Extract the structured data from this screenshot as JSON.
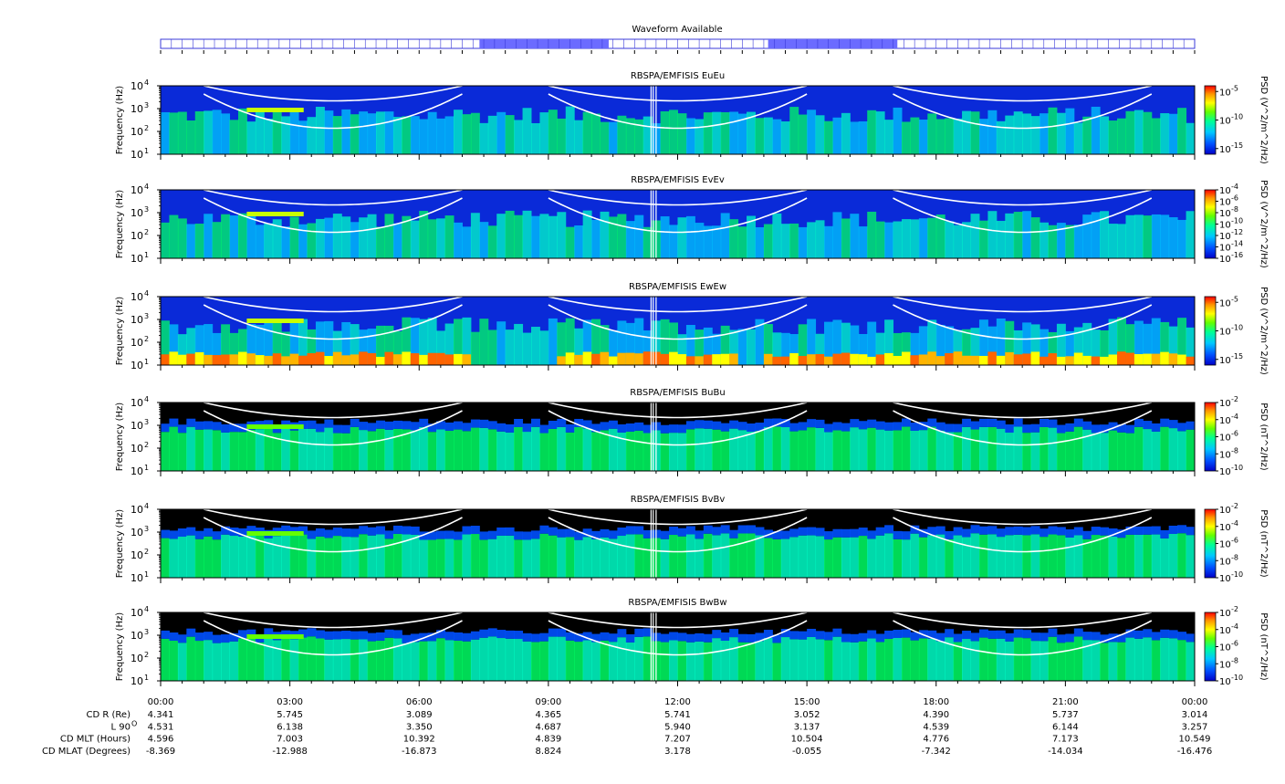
{
  "waveform": {
    "title": "Waveform Available",
    "available_intervals": [
      [
        "07:24",
        "10:24"
      ],
      [
        "14:06",
        "17:06"
      ]
    ],
    "color": "#6b6bff"
  },
  "chart_data": [
    {
      "type": "heatmap",
      "title": "RBSPA/EMFISIS  EuEu",
      "ylabel": "Frequency (Hz)",
      "ylim": [
        10,
        10000
      ],
      "yscale": "log",
      "yticks": [
        "10",
        "10",
        "10",
        "10"
      ],
      "ytick_exps": [
        "1",
        "2",
        "3",
        "4"
      ],
      "cbar_label": "PSD (V^2/m^2/Hz)",
      "cbar_ticks": [
        "10",
        "10",
        "10"
      ],
      "cbar_exps": [
        "-5",
        "-10",
        "-15"
      ],
      "clim_exp": [
        -16,
        -4
      ],
      "bottom_saturated": false
    },
    {
      "type": "heatmap",
      "title": "RBSPA/EMFISIS  EvEv",
      "ylabel": "Frequency (Hz)",
      "ylim": [
        10,
        10000
      ],
      "yscale": "log",
      "yticks": [
        "10",
        "10",
        "10",
        "10"
      ],
      "ytick_exps": [
        "1",
        "2",
        "3",
        "4"
      ],
      "cbar_label": "PSD (V^2/m^2/Hz)",
      "cbar_ticks": [
        "10",
        "10",
        "10",
        "10",
        "10",
        "10",
        "10"
      ],
      "cbar_exps": [
        "-4",
        "-6",
        "-8",
        "-10",
        "-12",
        "-14",
        "-16"
      ],
      "clim_exp": [
        -16,
        -4
      ],
      "bottom_saturated": false
    },
    {
      "type": "heatmap",
      "title": "RBSPA/EMFISIS  EwEw",
      "ylabel": "Frequency (Hz)",
      "ylim": [
        10,
        10000
      ],
      "yscale": "log",
      "yticks": [
        "10",
        "10",
        "10",
        "10"
      ],
      "ytick_exps": [
        "1",
        "2",
        "3",
        "4"
      ],
      "cbar_label": "PSD (V^2/m^2/Hz)",
      "cbar_ticks": [
        "10",
        "10",
        "10"
      ],
      "cbar_exps": [
        "-5",
        "-10",
        "-15"
      ],
      "clim_exp": [
        -16,
        -4
      ],
      "bottom_saturated": true
    },
    {
      "type": "heatmap",
      "title": "RBSPA/EMFISIS  BuBu",
      "ylabel": "Frequency (Hz)",
      "ylim": [
        10,
        10000
      ],
      "yscale": "log",
      "yticks": [
        "10",
        "10",
        "10",
        "10"
      ],
      "ytick_exps": [
        "1",
        "2",
        "3",
        "4"
      ],
      "cbar_label": "PSD (nT^2/Hz)",
      "cbar_ticks": [
        "10",
        "10",
        "10",
        "10",
        "10"
      ],
      "cbar_exps": [
        "-2",
        "-4",
        "-6",
        "-8",
        "-10"
      ],
      "clim_exp": [
        -10,
        -2
      ],
      "bottom_saturated": false
    },
    {
      "type": "heatmap",
      "title": "RBSPA/EMFISIS  BvBv",
      "ylabel": "Frequency (Hz)",
      "ylim": [
        10,
        10000
      ],
      "yscale": "log",
      "yticks": [
        "10",
        "10",
        "10",
        "10"
      ],
      "ytick_exps": [
        "1",
        "2",
        "3",
        "4"
      ],
      "cbar_label": "PSD (nT^2/Hz)",
      "cbar_ticks": [
        "10",
        "10",
        "10",
        "10",
        "10"
      ],
      "cbar_exps": [
        "-2",
        "-4",
        "-6",
        "-8",
        "-10"
      ],
      "clim_exp": [
        -10,
        -2
      ],
      "bottom_saturated": false
    },
    {
      "type": "heatmap",
      "title": "RBSPA/EMFISIS  BwBw",
      "ylabel": "Frequency (Hz)",
      "ylim": [
        10,
        10000
      ],
      "yscale": "log",
      "yticks": [
        "10",
        "10",
        "10",
        "10"
      ],
      "ytick_exps": [
        "1",
        "2",
        "3",
        "4"
      ],
      "cbar_label": "PSD (nT^2/Hz)",
      "cbar_ticks": [
        "10",
        "10",
        "10",
        "10",
        "10"
      ],
      "cbar_exps": [
        "-2",
        "-4",
        "-6",
        "-8",
        "-10"
      ],
      "clim_exp": [
        -10,
        -2
      ],
      "bottom_saturated": false
    }
  ],
  "time_axis": {
    "labels": [
      "00:00",
      "03:00",
      "06:00",
      "09:00",
      "12:00",
      "15:00",
      "18:00",
      "21:00",
      "00:00"
    ]
  },
  "ephemeris": {
    "rows": [
      {
        "label": "CD R (Re)",
        "values": [
          "4.341",
          "5.745",
          "3.089",
          "4.365",
          "5.741",
          "3.052",
          "4.390",
          "5.737",
          "3.014"
        ]
      },
      {
        "label": "L 90",
        "label_sup": "O",
        "values": [
          "4.531",
          "6.138",
          "3.350",
          "4.687",
          "5.940",
          "3.137",
          "4.539",
          "6.144",
          "3.257"
        ]
      },
      {
        "label": "CD MLT (Hours)",
        "values": [
          "4.596",
          "7.003",
          "10.392",
          "4.839",
          "7.207",
          "10.504",
          "4.776",
          "7.173",
          "10.549"
        ]
      },
      {
        "label": "CD MLAT (Degrees)",
        "values": [
          "-8.369",
          "-12.988",
          "-16.873",
          "8.824",
          "3.178",
          "-0.055",
          "-7.342",
          "-14.034",
          "-16.476"
        ]
      }
    ]
  }
}
